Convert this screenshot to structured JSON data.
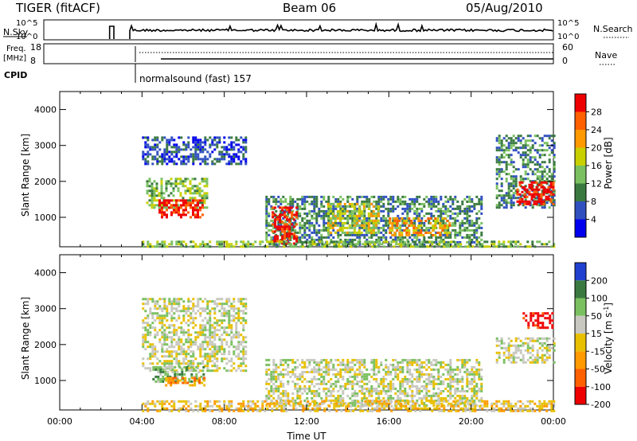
{
  "header": {
    "radar": "TIGER (fitACF)",
    "beam": "Beam 06",
    "date": "05/Aug/2010"
  },
  "top_panels": {
    "nsky_label": "N.Sky",
    "nsky_ticks": [
      "10^5",
      "10^0"
    ],
    "nsearch_label": "N.Search",
    "nsearch_ticks": [
      "10^5",
      "10^0"
    ],
    "freq_label_1": "Freq.",
    "freq_label_2": "[MHz]",
    "freq_ticks": [
      "18",
      "8"
    ],
    "nave_label": "Nave",
    "nave_ticks": [
      "60",
      "0"
    ],
    "cpid_label": "CPID",
    "cpid_text": "normalsound (fast) 157"
  },
  "chart_data": [
    {
      "type": "heatmap",
      "name": "power",
      "ylabel": "Slant Range [km]",
      "xlabel": "",
      "ylim": [
        180,
        4500
      ],
      "yticks": [
        "4000",
        "3000",
        "2000",
        "1000"
      ],
      "colorbar": {
        "label": "Power [dB]",
        "ticks": [
          "28",
          "24",
          "20",
          "16",
          "12",
          "8",
          "4"
        ],
        "colors": [
          "#0000ee",
          "#3050c0",
          "#3a7a40",
          "#7ac060",
          "#c8d000",
          "#ff9a00",
          "#ff6000",
          "#ee0000"
        ]
      },
      "regions": [
        {
          "t0": 4.0,
          "t1": 9.0,
          "r0": 2500,
          "r1": 3250,
          "level": 1
        },
        {
          "t0": 4.2,
          "t1": 7.2,
          "r0": 1300,
          "r1": 2100,
          "level": 3
        },
        {
          "t0": 4.8,
          "t1": 7.0,
          "r0": 1000,
          "r1": 1500,
          "level": 7
        },
        {
          "t0": 10.0,
          "t1": 20.5,
          "r0": 250,
          "r1": 1600,
          "level": 2
        },
        {
          "t0": 10.3,
          "t1": 11.5,
          "r0": 300,
          "r1": 1300,
          "level": 7
        },
        {
          "t0": 13.0,
          "t1": 15.5,
          "r0": 600,
          "r1": 1400,
          "level": 4
        },
        {
          "t0": 16.0,
          "t1": 19.0,
          "r0": 500,
          "r1": 1000,
          "level": 5
        },
        {
          "t0": 21.2,
          "t1": 24.0,
          "r0": 1300,
          "r1": 3300,
          "level": 2
        },
        {
          "t0": 22.2,
          "t1": 24.0,
          "r0": 1400,
          "r1": 2000,
          "level": 7
        },
        {
          "t0": 4.0,
          "t1": 24.0,
          "r0": 180,
          "r1": 350,
          "level": 3
        }
      ]
    },
    {
      "type": "heatmap",
      "name": "velocity",
      "ylabel": "Slant Range [km]",
      "xlabel": "Time UT",
      "ylim": [
        180,
        4500
      ],
      "yticks": [
        "4000",
        "3000",
        "2000",
        "1000"
      ],
      "xticks": [
        "00:00",
        "04:00",
        "08:00",
        "12:00",
        "16:00",
        "20:00",
        "00:00"
      ],
      "colorbar": {
        "label": "Velocity [m s",
        "label_sup": "-1",
        "label_end": "]",
        "ticks": [
          "200",
          "100",
          "50",
          "15",
          "-15",
          "-50",
          "-100",
          "-200"
        ],
        "colors": [
          "#2040d0",
          "#3a7a40",
          "#7ac060",
          "#c8c8c0",
          "#e8c000",
          "#ff9a00",
          "#ff6000",
          "#ee0000"
        ]
      },
      "regions": [
        {
          "t0": 4.0,
          "t1": 9.0,
          "r0": 1300,
          "r1": 3300,
          "level": 3
        },
        {
          "t0": 4.5,
          "t1": 7.0,
          "r0": 1000,
          "r1": 1400,
          "level": 2
        },
        {
          "t0": 5.0,
          "t1": 7.0,
          "r0": 900,
          "r1": 1100,
          "level": 5
        },
        {
          "t0": 10.0,
          "t1": 20.5,
          "r0": 300,
          "r1": 1600,
          "level": 3
        },
        {
          "t0": 4.0,
          "t1": 24.0,
          "r0": 180,
          "r1": 450,
          "level": 4
        },
        {
          "t0": 21.2,
          "t1": 24.0,
          "r0": 1500,
          "r1": 2200,
          "level": 3
        },
        {
          "t0": 22.5,
          "t1": 24.0,
          "r0": 2500,
          "r1": 2900,
          "level": 7
        }
      ]
    }
  ]
}
